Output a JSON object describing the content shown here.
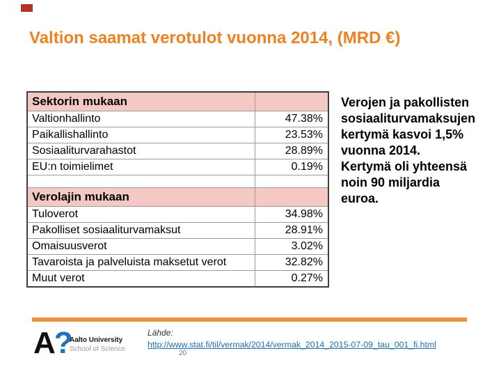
{
  "slide": {
    "title": "Valtion saamat verotulot vuonna 2014, (MRD €)",
    "title_color": "#ec8222",
    "corner_mark_color": "#b43228",
    "footer_bar_color": "#ef9240"
  },
  "table": {
    "header_bg": "#f4c9c5",
    "sections": [
      {
        "header": "Sektorin mukaan",
        "rows": [
          {
            "label": "Valtionhallinto",
            "value": "47.38%"
          },
          {
            "label": "Paikallishallinto",
            "value": "23.53%"
          },
          {
            "label": "Sosiaaliturvarahastot",
            "value": "28.89%"
          },
          {
            "label": "EU:n toimielimet",
            "value": "0.19%"
          }
        ]
      },
      {
        "header": "Verolajin mukaan",
        "rows": [
          {
            "label": "Tuloverot",
            "value": "34.98%"
          },
          {
            "label": "Pakolliset sosiaaliturvamaksut",
            "value": "28.91%"
          },
          {
            "label": "Omaisuusverot",
            "value": "3.02%"
          },
          {
            "label": "Tavaroista ja palveluista maksetut verot",
            "value": "32.82%"
          },
          {
            "label": "Muut verot",
            "value": "0.27%"
          }
        ]
      }
    ]
  },
  "note": {
    "lines": [
      "Verojen ja pakollisten",
      "sosiaaliturvamaksujen",
      "kertymä kasvoi 1,5%",
      "vuonna 2014.",
      "Kertymä oli yhteensä",
      "noin 90 miljardia",
      "euroa."
    ]
  },
  "footer": {
    "logo_letter": "A",
    "logo_mark": "?",
    "logo_mark_color": "#1d72b8",
    "logo_org": "Aalto University",
    "logo_unit": "School of Science",
    "source_label": "Lähde:",
    "source_url": "http://www.stat.fi/til/vermak/2014/vermak_2014_2015-07-09_tau_001_fi.html",
    "link_color": "#1b6faf",
    "page_number": "20"
  }
}
